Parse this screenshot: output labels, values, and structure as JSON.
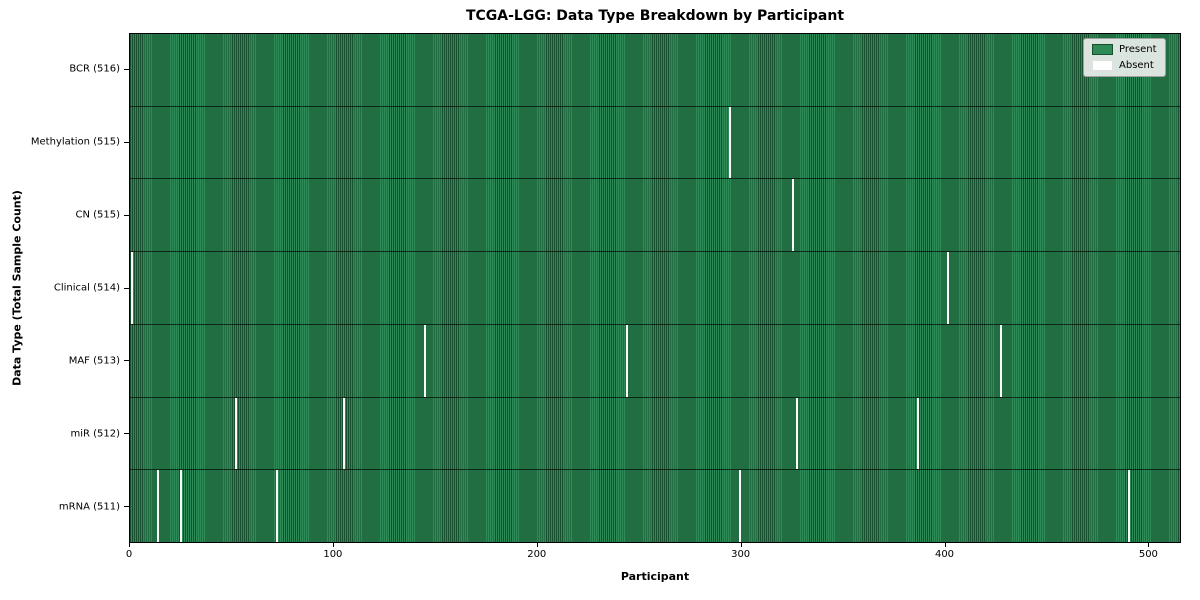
{
  "title": "TCGA-LGG: Data Type Breakdown by Participant",
  "chart_data": {
    "type": "heatmap",
    "title": "TCGA-LGG: Data Type Breakdown by Participant",
    "xlabel": "Participant",
    "ylabel": "Data Type (Total Sample Count)",
    "x_ticks": [
      0,
      100,
      200,
      300,
      400,
      500
    ],
    "n_participants": 516,
    "xlim": [
      0,
      516
    ],
    "grid": false,
    "legend_position": "upper right",
    "legend": [
      {
        "label": "Present",
        "color": "#2e8b57"
      },
      {
        "label": "Absent",
        "color": "#ffffff"
      }
    ],
    "rows": [
      {
        "label": "BCR (516)",
        "data_type": "BCR",
        "sample_count": 516,
        "absent_participants": []
      },
      {
        "label": "Methylation (515)",
        "data_type": "Methylation",
        "sample_count": 515,
        "absent_participants": [
          295
        ]
      },
      {
        "label": "CN (515)",
        "data_type": "CN",
        "sample_count": 515,
        "absent_participants": [
          326
        ]
      },
      {
        "label": "Clinical (514)",
        "data_type": "Clinical",
        "sample_count": 514,
        "absent_participants": [
          1,
          402
        ]
      },
      {
        "label": "MAF (513)",
        "data_type": "MAF",
        "sample_count": 513,
        "absent_participants": [
          145,
          244,
          428
        ]
      },
      {
        "label": "miR (512)",
        "data_type": "miR",
        "sample_count": 512,
        "absent_participants": [
          52,
          105,
          328,
          387
        ]
      },
      {
        "label": "mRNA (511)",
        "data_type": "mRNA",
        "sample_count": 511,
        "absent_participants": [
          14,
          25,
          72,
          300,
          491
        ]
      }
    ],
    "colors": {
      "present": "#2e8b57",
      "bar_edge_dark": "#17502f",
      "absent": "#fbfbfb",
      "axis": "#000000",
      "legend_bg": "#ebeeeb"
    }
  }
}
